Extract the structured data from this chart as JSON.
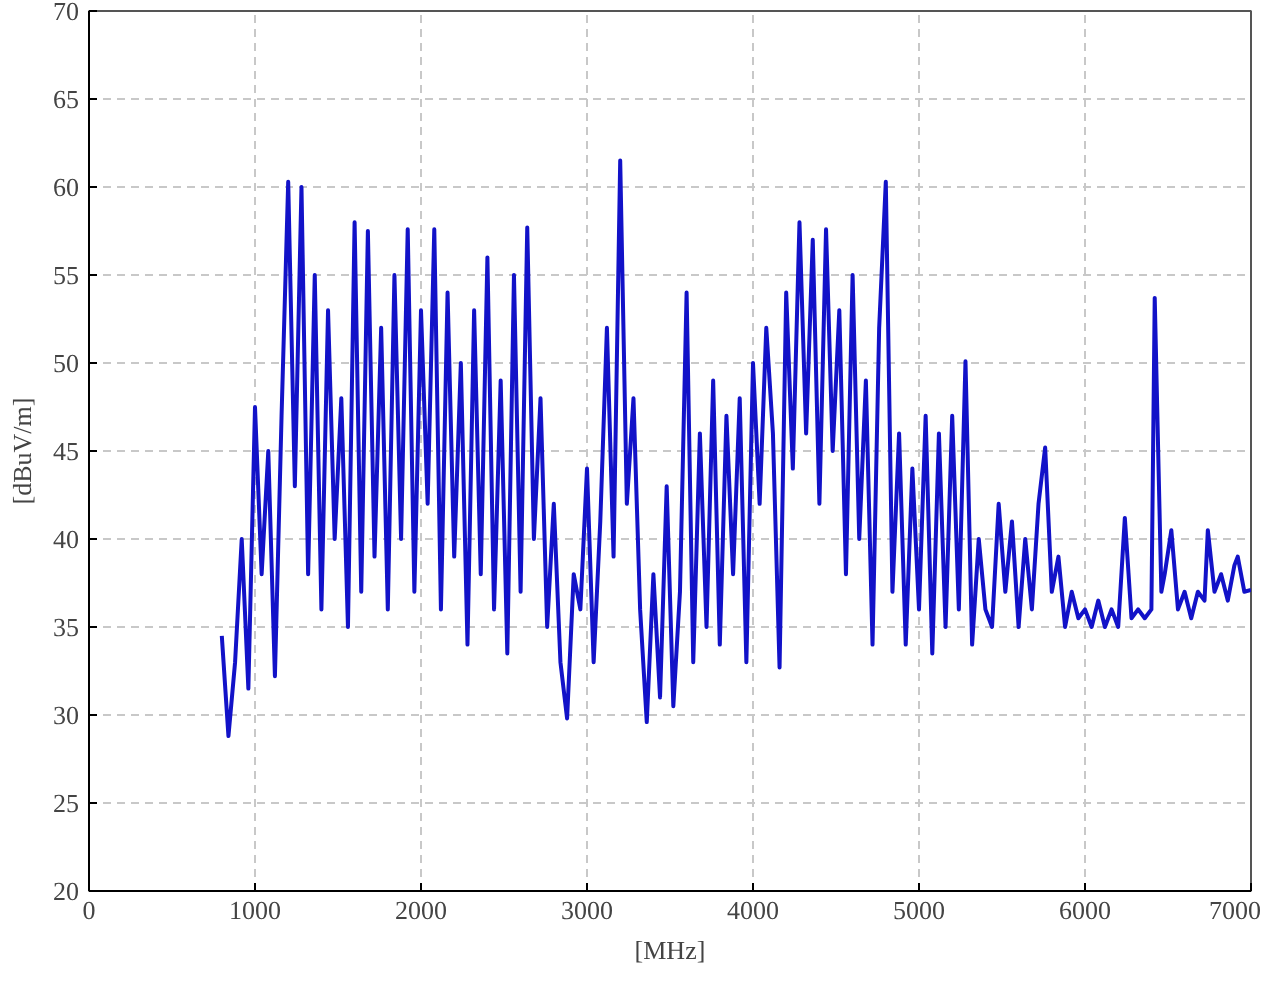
{
  "chart_data": {
    "type": "line",
    "xlabel": "[MHz]",
    "ylabel": "[dBuV/m]",
    "xlim": [
      0,
      7000
    ],
    "ylim": [
      20,
      70
    ],
    "xticks": [
      0,
      1000,
      2000,
      3000,
      4000,
      5000,
      6000,
      7000
    ],
    "yticks": [
      20,
      25,
      30,
      35,
      40,
      45,
      50,
      55,
      60,
      65,
      70
    ],
    "grid": true,
    "line_style": "solid",
    "marker": "none",
    "series": [
      {
        "color": "#1212c8",
        "x": [
          800,
          840,
          880,
          920,
          960,
          1000,
          1040,
          1080,
          1120,
          1160,
          1200,
          1240,
          1280,
          1320,
          1360,
          1400,
          1440,
          1480,
          1520,
          1560,
          1600,
          1640,
          1680,
          1720,
          1760,
          1800,
          1840,
          1880,
          1920,
          1960,
          2000,
          2040,
          2080,
          2120,
          2160,
          2200,
          2240,
          2280,
          2320,
          2360,
          2400,
          2440,
          2480,
          2520,
          2560,
          2600,
          2640,
          2680,
          2720,
          2760,
          2800,
          2840,
          2880,
          2920,
          2960,
          3000,
          3040,
          3080,
          3120,
          3160,
          3200,
          3240,
          3280,
          3320,
          3360,
          3400,
          3440,
          3480,
          3520,
          3560,
          3600,
          3640,
          3680,
          3720,
          3760,
          3800,
          3840,
          3880,
          3920,
          3960,
          4000,
          4040,
          4080,
          4120,
          4160,
          4200,
          4240,
          4280,
          4320,
          4360,
          4400,
          4440,
          4480,
          4520,
          4560,
          4600,
          4640,
          4680,
          4720,
          4760,
          4800,
          4840,
          4880,
          4920,
          4960,
          5000,
          5040,
          5080,
          5120,
          5160,
          5200,
          5240,
          5280,
          5320,
          5360,
          5400,
          5440,
          5480,
          5520,
          5560,
          5600,
          5640,
          5680,
          5720,
          5760,
          5800,
          5840,
          5880,
          5920,
          5960,
          6000,
          6040,
          6080,
          6120,
          6160,
          6200,
          6240,
          6280,
          6320,
          6360,
          6400,
          6420,
          6460,
          6480,
          6520,
          6560,
          6600,
          6640,
          6680,
          6720,
          6740,
          6780,
          6820,
          6860,
          6900,
          6920,
          6960,
          7000
        ],
        "values": [
          34.5,
          28.8,
          33,
          40,
          31.5,
          47.5,
          38,
          45,
          32.2,
          47,
          60.3,
          43,
          60,
          38,
          55,
          36,
          53,
          40,
          48,
          35,
          58,
          37,
          57.5,
          39,
          52,
          36,
          55,
          40,
          57.6,
          37,
          53,
          42,
          57.6,
          36,
          54,
          39,
          50,
          34,
          53,
          38,
          56,
          36,
          49,
          33.5,
          55,
          37,
          57.7,
          40,
          48,
          35,
          42,
          33,
          29.8,
          38,
          36,
          44,
          33,
          41,
          52,
          39,
          61.5,
          42,
          48,
          36,
          29.6,
          38,
          31,
          43,
          30.5,
          37,
          54,
          33,
          46,
          35,
          49,
          34,
          47,
          38,
          48,
          33,
          50,
          42,
          52,
          46,
          32.7,
          54,
          44,
          58,
          46,
          57,
          42,
          57.6,
          45,
          53,
          38,
          55,
          40,
          49,
          34,
          52,
          60.3,
          37,
          46,
          34,
          44,
          36,
          47,
          33.5,
          46,
          35,
          47,
          36,
          50.1,
          34,
          40,
          36,
          35,
          42,
          37,
          41,
          35,
          40,
          36,
          42,
          45.2,
          37,
          39,
          35,
          37,
          35.5,
          36,
          35,
          36.5,
          35,
          36,
          35,
          41.2,
          35.5,
          36,
          35.5,
          36,
          53.7,
          37,
          38,
          40.5,
          36,
          37,
          35.5,
          37,
          36.5,
          40.5,
          37,
          38,
          36.5,
          38.5,
          39,
          37,
          37.1
        ]
      }
    ]
  }
}
